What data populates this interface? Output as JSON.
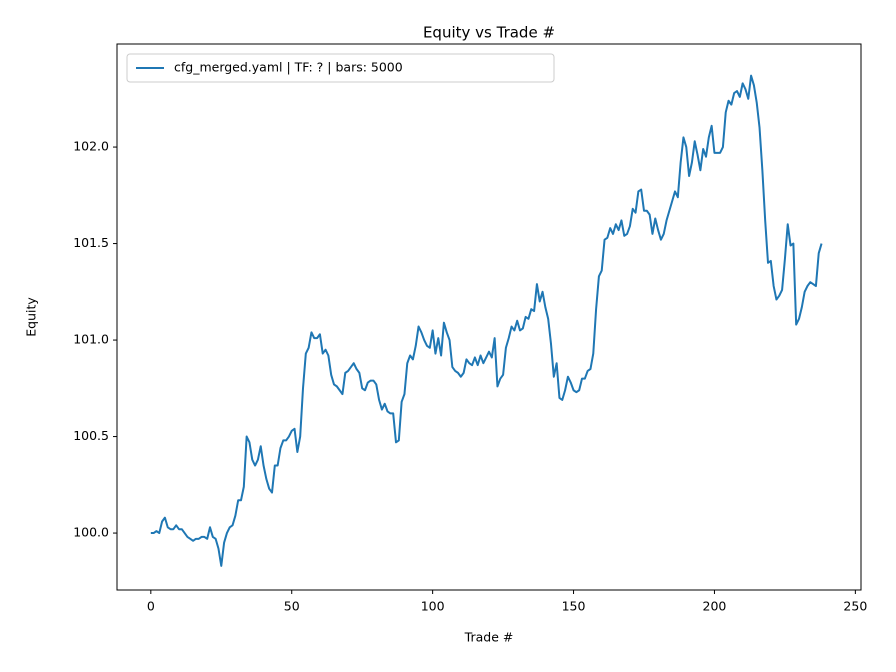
{
  "chart_data": {
    "type": "line",
    "title": "Equity vs Trade #",
    "xlabel": "Trade #",
    "ylabel": "Equity",
    "x": [
      0,
      1,
      2,
      3,
      4,
      5,
      6,
      7,
      8,
      9,
      10,
      11,
      12,
      13,
      14,
      15,
      16,
      17,
      18,
      19,
      20,
      21,
      22,
      23,
      24,
      25,
      26,
      27,
      28,
      29,
      30,
      31,
      32,
      33,
      34,
      35,
      36,
      37,
      38,
      39,
      40,
      41,
      42,
      43,
      44,
      45,
      46,
      47,
      48,
      49,
      50,
      51,
      52,
      53,
      54,
      55,
      56,
      57,
      58,
      59,
      60,
      61,
      62,
      63,
      64,
      65,
      66,
      67,
      68,
      69,
      70,
      71,
      72,
      73,
      74,
      75,
      76,
      77,
      78,
      79,
      80,
      81,
      82,
      83,
      84,
      85,
      86,
      87,
      88,
      89,
      90,
      91,
      92,
      93,
      94,
      95,
      96,
      97,
      98,
      99,
      100,
      101,
      102,
      103,
      104,
      105,
      106,
      107,
      108,
      109,
      110,
      111,
      112,
      113,
      114,
      115,
      116,
      117,
      118,
      119,
      120,
      121,
      122,
      123,
      124,
      125,
      126,
      127,
      128,
      129,
      130,
      131,
      132,
      133,
      134,
      135,
      136,
      137,
      138,
      139,
      140,
      141,
      142,
      143,
      144,
      145,
      146,
      147,
      148,
      149,
      150,
      151,
      152,
      153,
      154,
      155,
      156,
      157,
      158,
      159,
      160,
      161,
      162,
      163,
      164,
      165,
      166,
      167,
      168,
      169,
      170,
      171,
      172,
      173,
      174,
      175,
      176,
      177,
      178,
      179,
      180,
      181,
      182,
      183,
      184,
      185,
      186,
      187,
      188,
      189,
      190,
      191,
      192,
      193,
      194,
      195,
      196,
      197,
      198,
      199,
      200,
      201,
      202,
      203,
      204,
      205,
      206,
      207,
      208,
      209,
      210,
      211,
      212,
      213,
      214,
      215,
      216,
      217,
      218,
      219,
      220,
      221,
      222,
      223,
      224,
      225,
      226,
      227,
      228,
      229,
      230,
      231,
      232,
      233,
      234,
      235,
      236,
      237,
      238
    ],
    "series": [
      {
        "name": "cfg_merged.yaml | TF: ? | bars: 5000",
        "color": "#1f77b4",
        "values": [
          100.0,
          100.0,
          100.01,
          100.0,
          100.06,
          100.08,
          100.03,
          100.02,
          100.02,
          100.04,
          100.02,
          100.02,
          100.0,
          99.98,
          99.97,
          99.96,
          99.97,
          99.97,
          99.98,
          99.98,
          99.97,
          100.03,
          99.98,
          99.97,
          99.92,
          99.83,
          99.95,
          100.0,
          100.03,
          100.04,
          100.09,
          100.17,
          100.17,
          100.24,
          100.5,
          100.47,
          100.38,
          100.35,
          100.38,
          100.45,
          100.35,
          100.28,
          100.23,
          100.21,
          100.35,
          100.35,
          100.44,
          100.48,
          100.48,
          100.5,
          100.53,
          100.54,
          100.42,
          100.5,
          100.75,
          100.93,
          100.96,
          101.04,
          101.01,
          101.01,
          101.03,
          100.93,
          100.95,
          100.92,
          100.82,
          100.77,
          100.76,
          100.74,
          100.72,
          100.83,
          100.84,
          100.86,
          100.88,
          100.85,
          100.83,
          100.75,
          100.74,
          100.78,
          100.79,
          100.79,
          100.77,
          100.69,
          100.64,
          100.67,
          100.63,
          100.62,
          100.62,
          100.47,
          100.48,
          100.68,
          100.72,
          100.88,
          100.92,
          100.9,
          100.97,
          101.07,
          101.04,
          101.0,
          100.97,
          100.96,
          101.05,
          100.93,
          101.01,
          100.92,
          101.09,
          101.04,
          101.0,
          100.86,
          100.84,
          100.83,
          100.81,
          100.83,
          100.9,
          100.88,
          100.87,
          100.91,
          100.87,
          100.92,
          100.88,
          100.91,
          100.94,
          100.91,
          101.01,
          100.76,
          100.8,
          100.82,
          100.96,
          101.01,
          101.07,
          101.05,
          101.1,
          101.05,
          101.06,
          101.12,
          101.11,
          101.16,
          101.15,
          101.29,
          101.2,
          101.25,
          101.17,
          101.11,
          100.98,
          100.81,
          100.88,
          100.7,
          100.69,
          100.74,
          100.81,
          100.78,
          100.74,
          100.73,
          100.74,
          100.8,
          100.8,
          100.84,
          100.85,
          100.93,
          101.16,
          101.33,
          101.36,
          101.52,
          101.53,
          101.58,
          101.55,
          101.6,
          101.57,
          101.62,
          101.54,
          101.55,
          101.59,
          101.68,
          101.66,
          101.77,
          101.78,
          101.67,
          101.67,
          101.65,
          101.55,
          101.63,
          101.57,
          101.52,
          101.55,
          101.62,
          101.67,
          101.72,
          101.77,
          101.74,
          101.92,
          102.05,
          102.0,
          101.85,
          101.92,
          102.03,
          101.96,
          101.88,
          101.99,
          101.95,
          102.05,
          102.11,
          101.97,
          101.97,
          101.97,
          102.0,
          102.18,
          102.24,
          102.22,
          102.28,
          102.29,
          102.26,
          102.33,
          102.3,
          102.25,
          102.37,
          102.32,
          102.23,
          102.1,
          101.88,
          101.62,
          101.4,
          101.41,
          101.28,
          101.21,
          101.23,
          101.26,
          101.42,
          101.6,
          101.49,
          101.5,
          101.08,
          101.11,
          101.17,
          101.25,
          101.28,
          101.3,
          101.29,
          101.28,
          101.45,
          101.5
        ]
      }
    ],
    "xlim": [
      -12,
      252
    ],
    "xticks": [
      0,
      50,
      100,
      150,
      200,
      250
    ],
    "ylim": [
      99.705,
      102.534
    ],
    "yticks": [
      {
        "value": 100.0,
        "label": "100.0"
      },
      {
        "value": 100.5,
        "label": "100.5"
      },
      {
        "value": 101.0,
        "label": "101.0"
      },
      {
        "value": 101.5,
        "label": "101.5"
      },
      {
        "value": 102.0,
        "label": "102.0"
      }
    ],
    "legend": "upper left",
    "grid": false
  }
}
